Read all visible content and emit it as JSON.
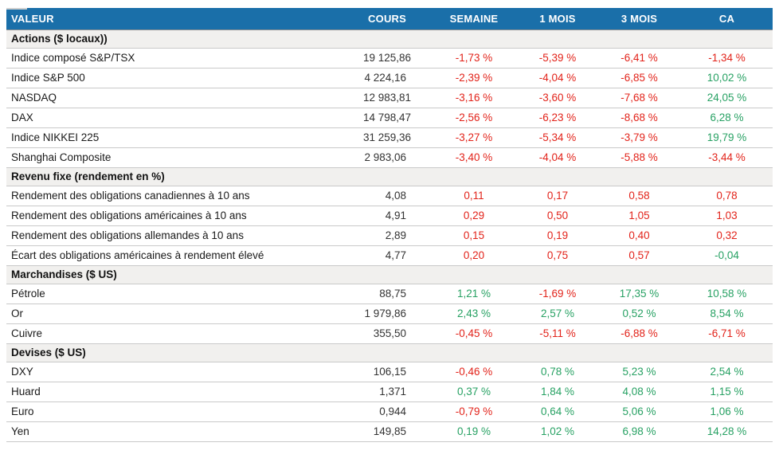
{
  "colors": {
    "header_bg": "#1a6fa9",
    "positive": "#27a163",
    "negative": "#e2231a",
    "section_bg": "#f1f0ee"
  },
  "header": {
    "columns": [
      "VALEUR",
      "COURS",
      "SEMAINE",
      "1 MOIS",
      "3 MOIS",
      "CA"
    ]
  },
  "sections": [
    {
      "title": "Actions ($ locaux))",
      "rows": [
        {
          "label": "Indice composé S&P/TSX",
          "cours": "19 125,86",
          "cells": [
            {
              "v": "-1,73 %",
              "c": "neg"
            },
            {
              "v": "-5,39 %",
              "c": "neg"
            },
            {
              "v": "-6,41 %",
              "c": "neg"
            },
            {
              "v": "-1,34 %",
              "c": "neg"
            }
          ]
        },
        {
          "label": "Indice S&P 500",
          "cours": "4 224,16",
          "cells": [
            {
              "v": "-2,39 %",
              "c": "neg"
            },
            {
              "v": "-4,04 %",
              "c": "neg"
            },
            {
              "v": "-6,85 %",
              "c": "neg"
            },
            {
              "v": "10,02 %",
              "c": "pos"
            }
          ]
        },
        {
          "label": "NASDAQ",
          "cours": "12 983,81",
          "cells": [
            {
              "v": "-3,16 %",
              "c": "neg"
            },
            {
              "v": "-3,60 %",
              "c": "neg"
            },
            {
              "v": "-7,68 %",
              "c": "neg"
            },
            {
              "v": "24,05 %",
              "c": "pos"
            }
          ]
        },
        {
          "label": "DAX",
          "cours": "14 798,47",
          "cells": [
            {
              "v": "-2,56 %",
              "c": "neg"
            },
            {
              "v": "-6,23 %",
              "c": "neg"
            },
            {
              "v": "-8,68 %",
              "c": "neg"
            },
            {
              "v": "6,28 %",
              "c": "pos"
            }
          ]
        },
        {
          "label": "Indice NIKKEI 225",
          "cours": "31 259,36",
          "cells": [
            {
              "v": "-3,27 %",
              "c": "neg"
            },
            {
              "v": "-5,34 %",
              "c": "neg"
            },
            {
              "v": "-3,79 %",
              "c": "neg"
            },
            {
              "v": "19,79 %",
              "c": "pos"
            }
          ]
        },
        {
          "label": "Shanghai Composite",
          "cours": "2 983,06",
          "cells": [
            {
              "v": "-3,40 %",
              "c": "neg"
            },
            {
              "v": "-4,04 %",
              "c": "neg"
            },
            {
              "v": "-5,88 %",
              "c": "neg"
            },
            {
              "v": "-3,44 %",
              "c": "neg"
            }
          ]
        }
      ]
    },
    {
      "title": "Revenu fixe (rendement en %)",
      "rows": [
        {
          "label": "Rendement des obligations canadiennes à 10 ans",
          "cours": "4,08",
          "cells": [
            {
              "v": "0,11",
              "c": "neg"
            },
            {
              "v": "0,17",
              "c": "neg"
            },
            {
              "v": "0,58",
              "c": "neg"
            },
            {
              "v": "0,78",
              "c": "neg"
            }
          ]
        },
        {
          "label": "Rendement des obligations américaines à 10 ans",
          "cours": "4,91",
          "cells": [
            {
              "v": "0,29",
              "c": "neg"
            },
            {
              "v": "0,50",
              "c": "neg"
            },
            {
              "v": "1,05",
              "c": "neg"
            },
            {
              "v": "1,03",
              "c": "neg"
            }
          ]
        },
        {
          "label": "Rendement des obligations allemandes à 10 ans",
          "cours": "2,89",
          "cells": [
            {
              "v": "0,15",
              "c": "neg"
            },
            {
              "v": "0,19",
              "c": "neg"
            },
            {
              "v": "0,40",
              "c": "neg"
            },
            {
              "v": "0,32",
              "c": "neg"
            }
          ]
        },
        {
          "label": "Écart des obligations américaines à rendement élevé",
          "cours": "4,77",
          "cells": [
            {
              "v": "0,20",
              "c": "neg"
            },
            {
              "v": "0,75",
              "c": "neg"
            },
            {
              "v": "0,57",
              "c": "neg"
            },
            {
              "v": "-0,04",
              "c": "pos"
            }
          ]
        }
      ]
    },
    {
      "title": "Marchandises ($ US)",
      "rows": [
        {
          "label": "Pétrole",
          "cours": "88,75",
          "cells": [
            {
              "v": "1,21 %",
              "c": "pos"
            },
            {
              "v": "-1,69 %",
              "c": "neg"
            },
            {
              "v": "17,35 %",
              "c": "pos"
            },
            {
              "v": "10,58 %",
              "c": "pos"
            }
          ]
        },
        {
          "label": "Or",
          "cours": "1 979,86",
          "cells": [
            {
              "v": "2,43 %",
              "c": "pos"
            },
            {
              "v": "2,57 %",
              "c": "pos"
            },
            {
              "v": "0,52 %",
              "c": "pos"
            },
            {
              "v": "8,54 %",
              "c": "pos"
            }
          ]
        },
        {
          "label": "Cuivre",
          "cours": "355,50",
          "cells": [
            {
              "v": "-0,45 %",
              "c": "neg"
            },
            {
              "v": "-5,11 %",
              "c": "neg"
            },
            {
              "v": "-6,88 %",
              "c": "neg"
            },
            {
              "v": "-6,71 %",
              "c": "neg"
            }
          ]
        }
      ]
    },
    {
      "title": "Devises ($ US)",
      "rows": [
        {
          "label": "DXY",
          "cours": "106,15",
          "cells": [
            {
              "v": "-0,46 %",
              "c": "neg"
            },
            {
              "v": "0,78 %",
              "c": "pos"
            },
            {
              "v": "5,23 %",
              "c": "pos"
            },
            {
              "v": "2,54 %",
              "c": "pos"
            }
          ]
        },
        {
          "label": "Huard",
          "cours": "1,371",
          "cells": [
            {
              "v": "0,37 %",
              "c": "pos"
            },
            {
              "v": "1,84 %",
              "c": "pos"
            },
            {
              "v": "4,08 %",
              "c": "pos"
            },
            {
              "v": "1,15 %",
              "c": "pos"
            }
          ]
        },
        {
          "label": "Euro",
          "cours": "0,944",
          "cells": [
            {
              "v": "-0,79 %",
              "c": "neg"
            },
            {
              "v": "0,64 %",
              "c": "pos"
            },
            {
              "v": "5,06 %",
              "c": "pos"
            },
            {
              "v": "1,06 %",
              "c": "pos"
            }
          ]
        },
        {
          "label": "Yen",
          "cours": "149,85",
          "cells": [
            {
              "v": "0,19 %",
              "c": "pos"
            },
            {
              "v": "1,02 %",
              "c": "pos"
            },
            {
              "v": "6,98 %",
              "c": "pos"
            },
            {
              "v": "14,28 %",
              "c": "pos"
            }
          ]
        }
      ]
    }
  ]
}
